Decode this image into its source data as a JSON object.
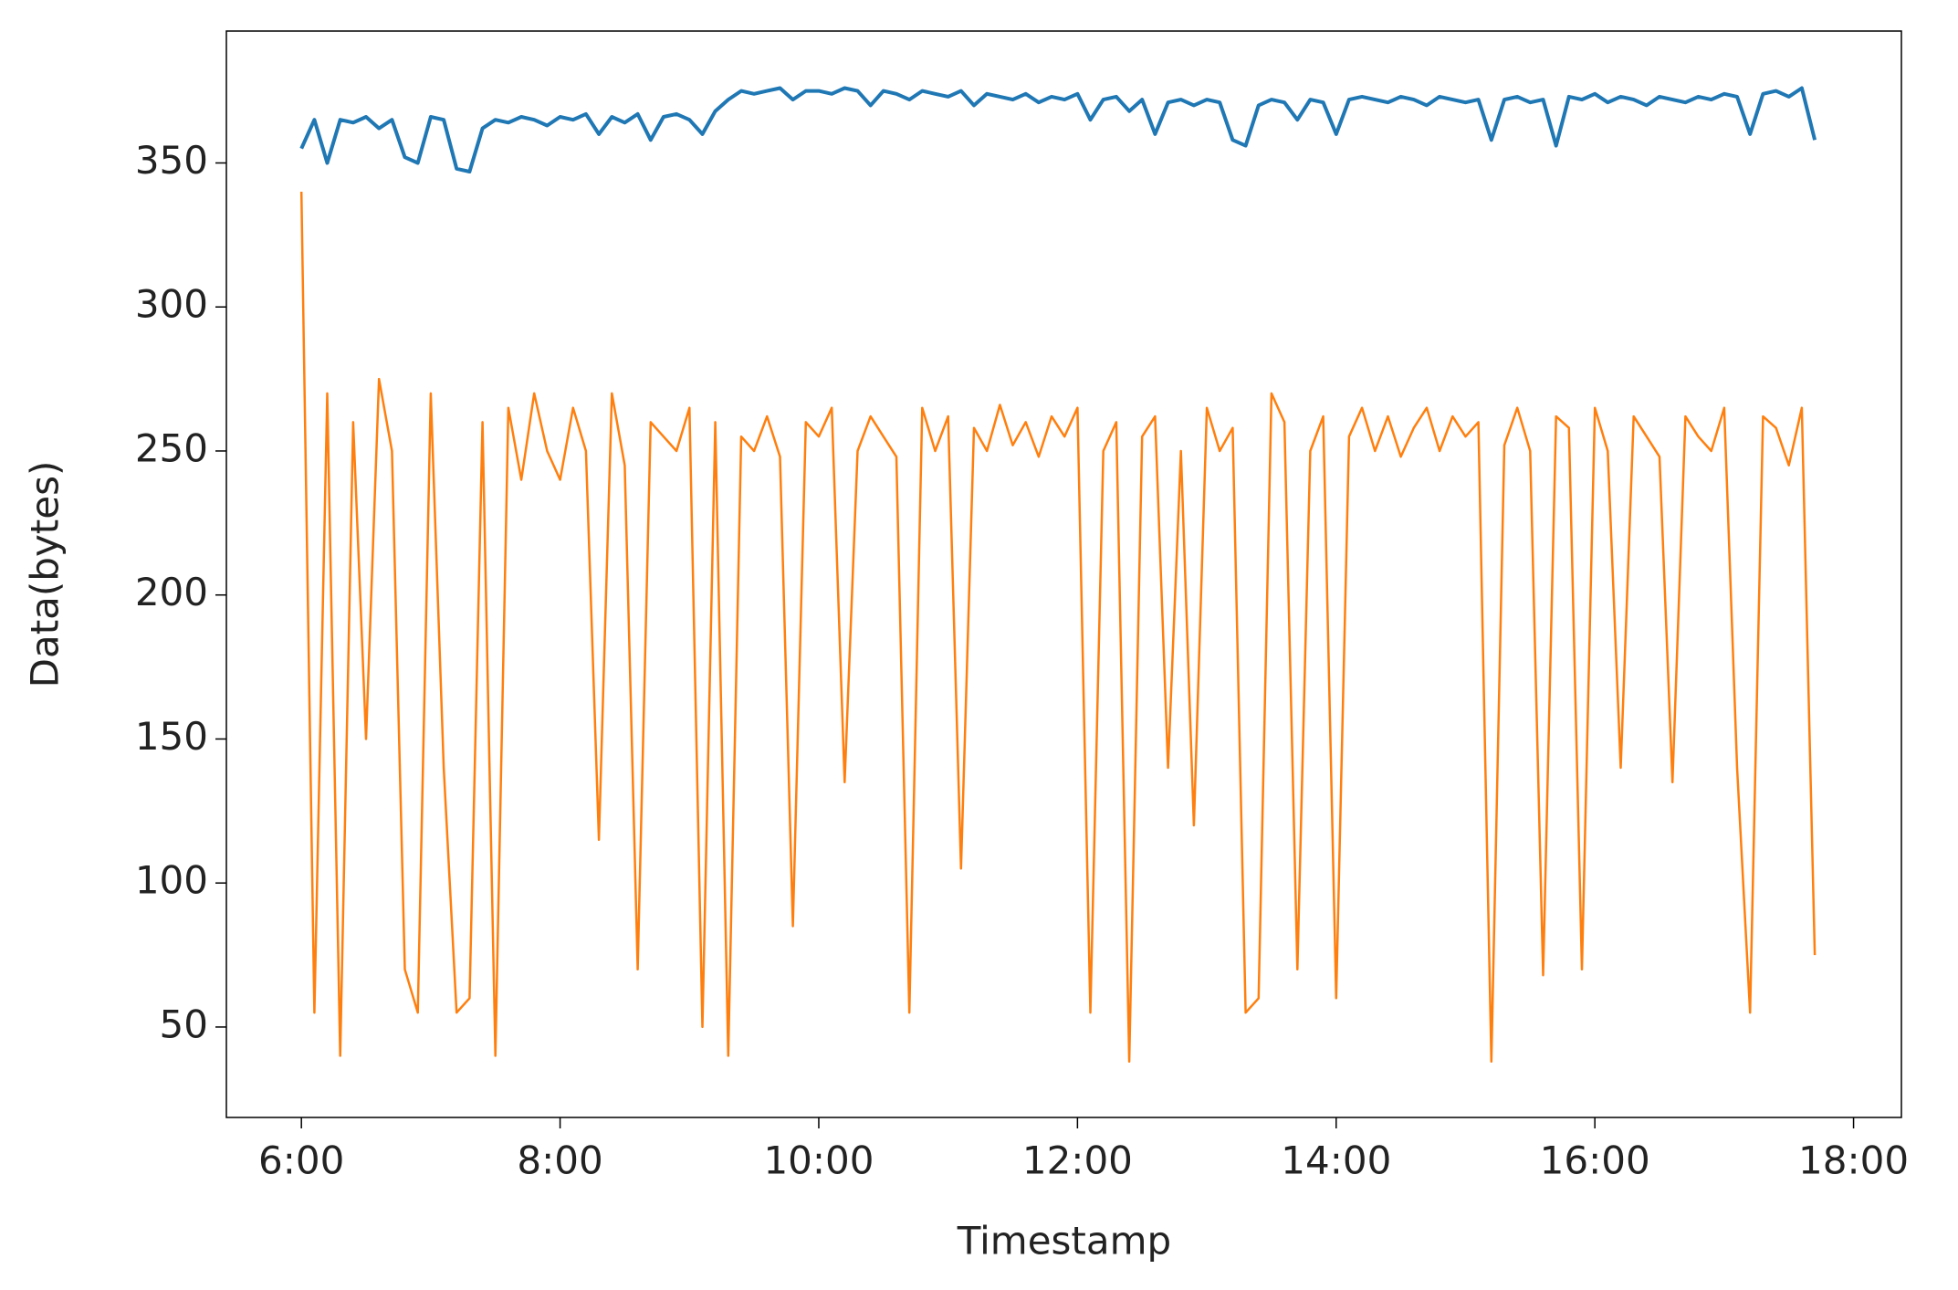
{
  "chart_data": {
    "type": "line",
    "xlabel": "Timestamp",
    "ylabel": "Data(bytes)",
    "x": [
      6.0,
      6.1,
      6.2,
      6.3,
      6.4,
      6.5,
      6.6,
      6.7,
      6.8,
      6.9,
      7.0,
      7.1,
      7.2,
      7.3,
      7.4,
      7.5,
      7.6,
      7.7,
      7.8,
      7.9,
      8.0,
      8.1,
      8.2,
      8.3,
      8.4,
      8.5,
      8.6,
      8.7,
      8.8,
      8.9,
      9.0,
      9.1,
      9.2,
      9.3,
      9.4,
      9.5,
      9.6,
      9.7,
      9.8,
      9.9,
      10.0,
      10.1,
      10.2,
      10.3,
      10.4,
      10.5,
      10.6,
      10.7,
      10.8,
      10.9,
      11.0,
      11.1,
      11.2,
      11.3,
      11.4,
      11.5,
      11.6,
      11.7,
      11.8,
      11.9,
      12.0,
      12.1,
      12.2,
      12.3,
      12.4,
      12.5,
      12.6,
      12.7,
      12.8,
      12.9,
      13.0,
      13.1,
      13.2,
      13.3,
      13.4,
      13.5,
      13.6,
      13.7,
      13.8,
      13.9,
      14.0,
      14.1,
      14.2,
      14.3,
      14.4,
      14.5,
      14.6,
      14.7,
      14.8,
      14.9,
      15.0,
      15.1,
      15.2,
      15.3,
      15.4,
      15.5,
      15.6,
      15.7,
      15.8,
      15.9,
      16.0,
      16.1,
      16.2,
      16.3,
      16.4,
      16.5,
      16.6,
      16.7,
      16.8,
      16.9,
      17.0,
      17.1,
      17.2,
      17.3,
      17.4,
      17.5,
      17.6,
      17.7
    ],
    "series": [
      {
        "color": "#1f77b4",
        "values": [
          355,
          365,
          350,
          365,
          364,
          366,
          362,
          365,
          352,
          350,
          366,
          365,
          348,
          347,
          362,
          365,
          364,
          366,
          365,
          363,
          366,
          365,
          367,
          360,
          366,
          364,
          367,
          358,
          366,
          367,
          365,
          360,
          368,
          372,
          375,
          374,
          375,
          376,
          372,
          375,
          375,
          374,
          376,
          375,
          370,
          375,
          374,
          372,
          375,
          374,
          373,
          375,
          370,
          374,
          373,
          372,
          374,
          371,
          373,
          372,
          374,
          365,
          372,
          373,
          368,
          372,
          360,
          371,
          372,
          370,
          372,
          371,
          358,
          356,
          370,
          372,
          371,
          365,
          372,
          371,
          360,
          372,
          373,
          372,
          371,
          373,
          372,
          370,
          373,
          372,
          371,
          372,
          358,
          372,
          373,
          371,
          372,
          356,
          373,
          372,
          374,
          371,
          373,
          372,
          370,
          373,
          372,
          371,
          373,
          372,
          374,
          373,
          360,
          374,
          375,
          373,
          376,
          358
        ]
      },
      {
        "color": "#ff7f0e",
        "values": [
          340,
          55,
          270,
          40,
          260,
          150,
          275,
          250,
          70,
          55,
          270,
          140,
          55,
          60,
          260,
          40,
          265,
          240,
          270,
          250,
          240,
          265,
          250,
          115,
          270,
          245,
          70,
          260,
          255,
          250,
          265,
          50,
          260,
          40,
          255,
          250,
          262,
          248,
          85,
          260,
          255,
          265,
          135,
          250,
          262,
          255,
          248,
          55,
          265,
          250,
          262,
          105,
          258,
          250,
          266,
          252,
          260,
          248,
          262,
          255,
          265,
          55,
          250,
          260,
          38,
          255,
          262,
          140,
          250,
          120,
          265,
          250,
          258,
          55,
          60,
          270,
          260,
          70,
          250,
          262,
          60,
          255,
          265,
          250,
          262,
          248,
          258,
          265,
          250,
          262,
          255,
          260,
          38,
          252,
          265,
          250,
          68,
          262,
          258,
          70,
          265,
          250,
          140,
          262,
          255,
          248,
          135,
          262,
          255,
          250,
          265,
          140,
          55,
          262,
          258,
          245,
          265,
          75
        ]
      }
    ],
    "xlim": [
      5.42,
      18.37
    ],
    "ylim": [
      18.6,
      395.8
    ],
    "xticks": [
      {
        "value": 6,
        "label": "6:00"
      },
      {
        "value": 8,
        "label": "8:00"
      },
      {
        "value": 10,
        "label": "10:00"
      },
      {
        "value": 12,
        "label": "12:00"
      },
      {
        "value": 14,
        "label": "14:00"
      },
      {
        "value": 16,
        "label": "16:00"
      },
      {
        "value": 18,
        "label": "18:00"
      }
    ],
    "yticks": [
      50,
      100,
      150,
      200,
      250,
      300,
      350
    ]
  }
}
